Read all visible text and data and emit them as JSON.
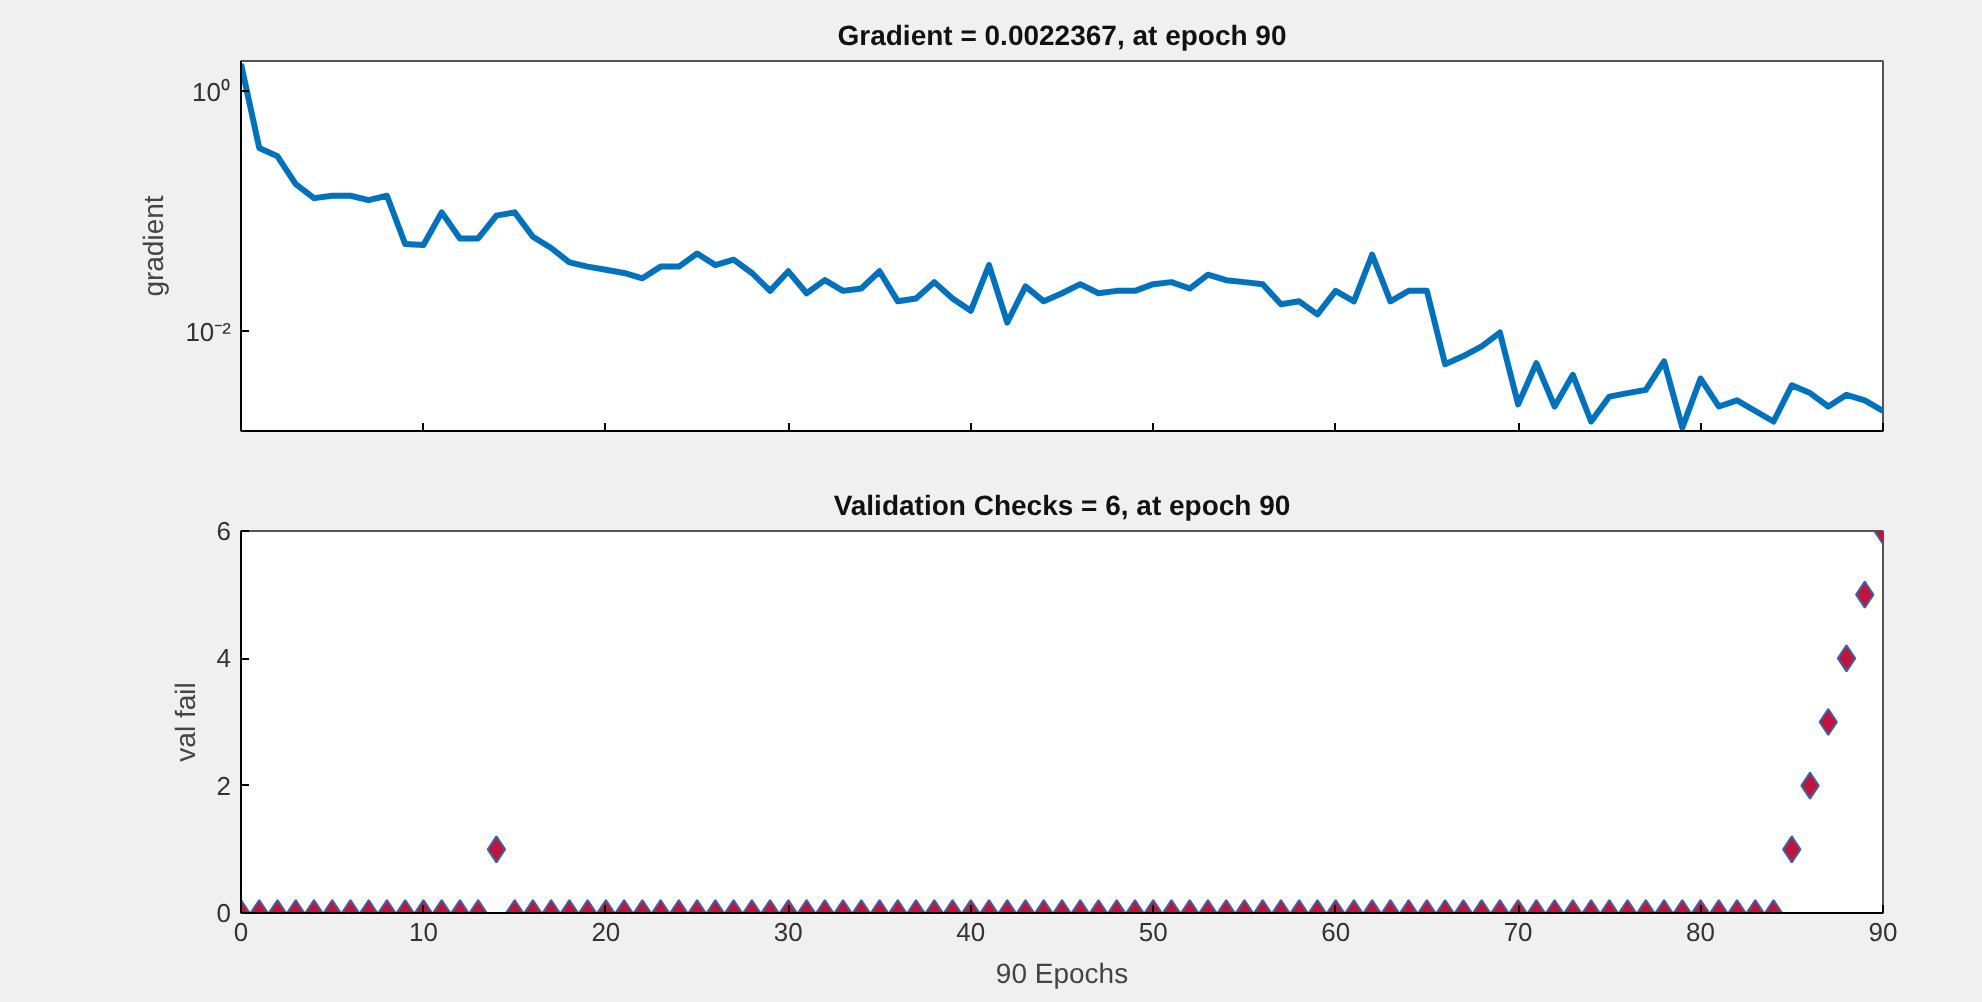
{
  "chart_data": [
    {
      "type": "line",
      "title": "Gradient = 0.0022367, at epoch 90",
      "ylabel": "gradient",
      "log": "y",
      "tick_labels": "y",
      "grid": false,
      "marker": "none",
      "line_style": "solid",
      "x": [
        0,
        1,
        2,
        3,
        4,
        5,
        6,
        7,
        8,
        9,
        10,
        11,
        12,
        13,
        14,
        15,
        16,
        17,
        18,
        19,
        20,
        21,
        22,
        23,
        24,
        25,
        26,
        27,
        28,
        29,
        30,
        31,
        32,
        33,
        34,
        35,
        36,
        37,
        38,
        39,
        40,
        41,
        42,
        43,
        44,
        45,
        46,
        47,
        48,
        49,
        50,
        51,
        52,
        53,
        54,
        55,
        56,
        57,
        58,
        59,
        60,
        61,
        62,
        63,
        64,
        65,
        66,
        67,
        68,
        69,
        70,
        71,
        72,
        73,
        74,
        75,
        76,
        77,
        78,
        79,
        80,
        81,
        82,
        83,
        84,
        85,
        86,
        87,
        88,
        89,
        90
      ],
      "xlim": [
        0,
        90
      ],
      "xticks": [
        0,
        10,
        20,
        30,
        40,
        50,
        60,
        70,
        80,
        90
      ],
      "ylim": [
        0.0015,
        1.8
      ],
      "yticks": [
        {
          "value": 1,
          "label": "10⁰"
        },
        {
          "value": 0.01,
          "label": "10⁻²"
        }
      ],
      "series": [
        {
          "color": "#0072bd",
          "values": [
            1.7,
            0.34,
            0.29,
            0.17,
            0.13,
            0.136,
            0.136,
            0.125,
            0.136,
            0.054,
            0.053,
            0.099,
            0.06,
            0.06,
            0.093,
            0.099,
            0.062,
            0.05,
            0.038,
            0.035,
            0.033,
            0.031,
            0.028,
            0.035,
            0.035,
            0.045,
            0.036,
            0.04,
            0.031,
            0.022,
            0.032,
            0.021,
            0.027,
            0.022,
            0.023,
            0.032,
            0.018,
            0.019,
            0.026,
            0.019,
            0.015,
            0.036,
            0.012,
            0.024,
            0.018,
            0.021,
            0.025,
            0.021,
            0.022,
            0.022,
            0.025,
            0.026,
            0.023,
            0.03,
            0.027,
            0.026,
            0.025,
            0.017,
            0.018,
            0.014,
            0.022,
            0.018,
            0.044,
            0.018,
            0.022,
            0.022,
            0.0054,
            0.0063,
            0.0076,
            0.0099,
            0.0025,
            0.0055,
            0.0024,
            0.0044,
            0.0018,
            0.0029,
            0.0031,
            0.0033,
            0.0057,
            0.0016,
            0.0041,
            0.0024,
            0.0027,
            0.0022,
            0.0018,
            0.0036,
            0.0031,
            0.0024,
            0.003,
            0.0027,
            0.0022
          ]
        }
      ]
    },
    {
      "type": "scatter",
      "title": "Validation Checks = 6, at epoch 90",
      "xlabel": "90 Epochs",
      "ylabel": "val fail",
      "grid": false,
      "marker": "diamond",
      "x": [
        0,
        1,
        2,
        3,
        4,
        5,
        6,
        7,
        8,
        9,
        10,
        11,
        12,
        13,
        14,
        15,
        16,
        17,
        18,
        19,
        20,
        21,
        22,
        23,
        24,
        25,
        26,
        27,
        28,
        29,
        30,
        31,
        32,
        33,
        34,
        35,
        36,
        37,
        38,
        39,
        40,
        41,
        42,
        43,
        44,
        45,
        46,
        47,
        48,
        49,
        50,
        51,
        52,
        53,
        54,
        55,
        56,
        57,
        58,
        59,
        60,
        61,
        62,
        63,
        64,
        65,
        66,
        67,
        68,
        69,
        70,
        71,
        72,
        73,
        74,
        75,
        76,
        77,
        78,
        79,
        80,
        81,
        82,
        83,
        84,
        85,
        86,
        87,
        88,
        89,
        90
      ],
      "xlim": [
        0,
        90
      ],
      "xticks": [
        0,
        10,
        20,
        30,
        40,
        50,
        60,
        70,
        80,
        90
      ],
      "ylim": [
        0,
        6
      ],
      "yticks": [
        0,
        2,
        4,
        6
      ],
      "series": [
        {
          "color": "#c0143c",
          "values": [
            0,
            0,
            0,
            0,
            0,
            0,
            0,
            0,
            0,
            0,
            0,
            0,
            0,
            0,
            1,
            0,
            0,
            0,
            0,
            0,
            0,
            0,
            0,
            0,
            0,
            0,
            0,
            0,
            0,
            0,
            0,
            0,
            0,
            0,
            0,
            0,
            0,
            0,
            0,
            0,
            0,
            0,
            0,
            0,
            0,
            0,
            0,
            0,
            0,
            0,
            0,
            0,
            0,
            0,
            0,
            0,
            0,
            0,
            0,
            0,
            0,
            0,
            0,
            0,
            0,
            0,
            0,
            0,
            0,
            0,
            0,
            0,
            0,
            0,
            0,
            0,
            0,
            0,
            0,
            0,
            0,
            0,
            0,
            0,
            0,
            1,
            2,
            3,
            4,
            5,
            6
          ]
        }
      ]
    }
  ]
}
